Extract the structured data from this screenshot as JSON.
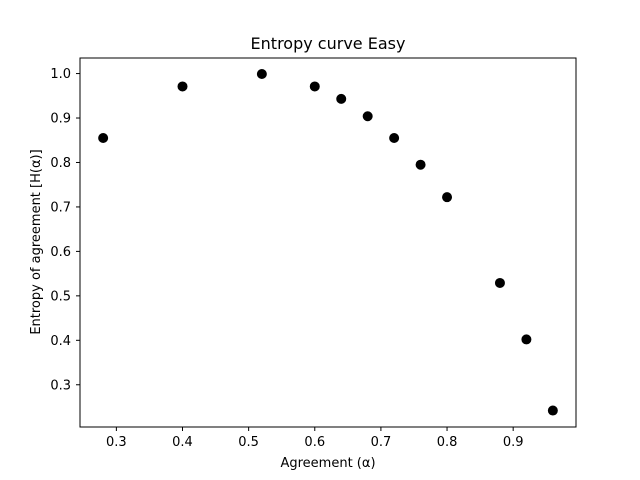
{
  "chart_data": {
    "type": "scatter",
    "title": "Entropy curve Easy",
    "xlabel": "Agreement (α)",
    "ylabel": "Entropy of agreement [H(α)]",
    "xlim": [
      0.245,
      0.995
    ],
    "ylim": [
      0.205,
      1.035
    ],
    "xticks": [
      0.3,
      0.4,
      0.5,
      0.6,
      0.7,
      0.8,
      0.9
    ],
    "xtick_labels": [
      "0.3",
      "0.4",
      "0.5",
      "0.6",
      "0.7",
      "0.8",
      "0.9"
    ],
    "yticks": [
      0.3,
      0.4,
      0.5,
      0.6,
      0.7,
      0.8,
      0.9,
      1.0
    ],
    "ytick_labels": [
      "0.3",
      "0.4",
      "0.5",
      "0.6",
      "0.7",
      "0.8",
      "0.9",
      "1.0"
    ],
    "grid": false,
    "marker_color": "#000000",
    "points": [
      {
        "x": 0.28,
        "y": 0.855
      },
      {
        "x": 0.4,
        "y": 0.971
      },
      {
        "x": 0.52,
        "y": 0.999
      },
      {
        "x": 0.6,
        "y": 0.971
      },
      {
        "x": 0.64,
        "y": 0.943
      },
      {
        "x": 0.68,
        "y": 0.904
      },
      {
        "x": 0.72,
        "y": 0.855
      },
      {
        "x": 0.76,
        "y": 0.795
      },
      {
        "x": 0.8,
        "y": 0.722
      },
      {
        "x": 0.88,
        "y": 0.529
      },
      {
        "x": 0.92,
        "y": 0.402
      },
      {
        "x": 0.96,
        "y": 0.242
      }
    ]
  }
}
